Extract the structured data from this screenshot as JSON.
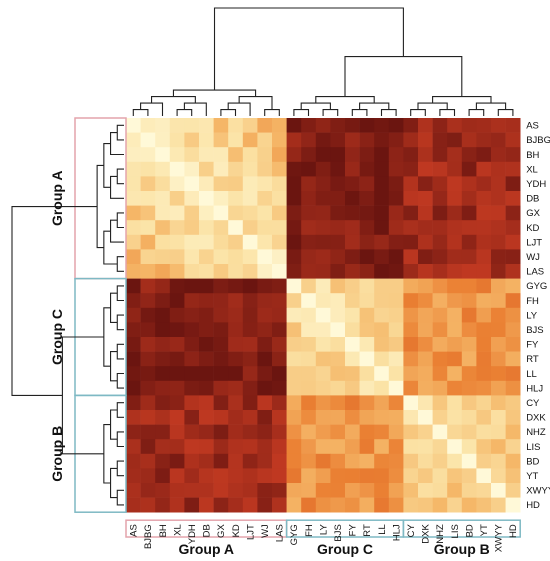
{
  "chart_data": {
    "type": "heatmap",
    "title": "",
    "labels": [
      "AS",
      "BJBG",
      "BH",
      "XL",
      "YDH",
      "DB",
      "GX",
      "KD",
      "LJT",
      "WJ",
      "LAS",
      "GYG",
      "FH",
      "LY",
      "BJS",
      "FY",
      "RT",
      "LL",
      "HLJ",
      "CY",
      "DXK",
      "NHZ",
      "LIS",
      "BD",
      "YT",
      "XWYY",
      "HD"
    ],
    "groups": [
      {
        "name": "Group A",
        "members": [
          "AS",
          "BJBG",
          "BH",
          "XL",
          "YDH",
          "DB",
          "GX",
          "KD",
          "LJT",
          "WJ",
          "LAS"
        ],
        "color": "#e4a4ac"
      },
      {
        "name": "Group C",
        "members": [
          "GYG",
          "FH",
          "LY",
          "BJS",
          "FY",
          "RT",
          "LL",
          "HLJ"
        ],
        "color": "#7eb9c4"
      },
      {
        "name": "Group B",
        "members": [
          "CY",
          "DXK",
          "NHZ",
          "LIS",
          "BD",
          "YT",
          "XWYY",
          "HD"
        ],
        "color": "#7eb9c4"
      }
    ],
    "colormap": {
      "low": "#fff7cf",
      "mid": "#ef9e3d",
      "high": "#6b1510"
    },
    "within_group_level": "light",
    "between_group_level": "dark",
    "dendrograms": [
      "top",
      "left"
    ]
  }
}
